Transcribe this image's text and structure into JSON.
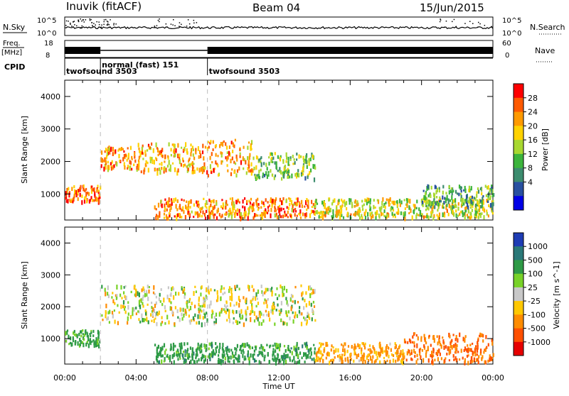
{
  "header": {
    "station": "Inuvik (fitACF)",
    "beam": "Beam 04",
    "date": "15/Jun/2015"
  },
  "aux_panels": {
    "nsky_label": "N.Sky",
    "nsky_ticks": [
      "10^5",
      "10^0"
    ],
    "nsearch_label": "N.Search",
    "nsearch_ticks": [
      "10^5",
      "10^0"
    ],
    "freq_label_1": "Freq.",
    "freq_label_2": "[MHz]",
    "freq_ticks": [
      "18",
      "8"
    ],
    "nave_label": "Nave",
    "nave_ticks": [
      "60",
      "0"
    ],
    "cpid_label": "CPID"
  },
  "cpid_segments": [
    {
      "start": 0.0,
      "end": 2.0,
      "name": "twofsound 3503"
    },
    {
      "start": 2.0,
      "end": 8.0,
      "name": "normal (fast) 151"
    },
    {
      "start": 8.0,
      "end": 24.0,
      "name": "twofsound 3503"
    }
  ],
  "power_scale": {
    "title": "Power [dB]",
    "ticks": [
      "28",
      "24",
      "20",
      "16",
      "12",
      "8",
      "4"
    ],
    "colors": [
      "#ff0000",
      "#ff5a00",
      "#ff9a00",
      "#ffd200",
      "#a8d830",
      "#3cb43c",
      "#3c8c6e",
      "#2850a0",
      "#0000e6"
    ]
  },
  "velocity_scale": {
    "title": "Velocity [m s^-1]",
    "ticks": [
      "1000",
      "500",
      "100",
      "25",
      "-25",
      "-100",
      "-500",
      "-1000"
    ],
    "colors": [
      "#1e3cb4",
      "#2a7878",
      "#2e9a46",
      "#78d228",
      "#c8c8c8",
      "#ffc800",
      "#ff8c00",
      "#ff5000",
      "#e60000"
    ]
  },
  "chart_data": [
    {
      "type": "heatmap",
      "panel": "power",
      "ylabel": "Slant Range [km]",
      "xlabel": "Time UT",
      "xlim": [
        0,
        24
      ],
      "ylim": [
        200,
        4500
      ],
      "yticks": [
        1000,
        2000,
        3000,
        4000
      ],
      "xticks": [
        "00:00",
        "04:00",
        "08:00",
        "12:00",
        "16:00",
        "20:00",
        "00:00"
      ],
      "colorbar": "Power [dB]",
      "regions": [
        {
          "t0": 0.0,
          "t1": 2.0,
          "r0": 800,
          "r1": 1300,
          "value": 26
        },
        {
          "t0": 2.0,
          "t1": 4.0,
          "r0": 1800,
          "r1": 2500,
          "value": 24
        },
        {
          "t0": 4.0,
          "t1": 8.0,
          "r0": 1700,
          "r1": 2600,
          "value": 22
        },
        {
          "t0": 8.0,
          "t1": 10.5,
          "r0": 1600,
          "r1": 2700,
          "value": 22
        },
        {
          "t0": 10.5,
          "t1": 14.0,
          "r0": 1500,
          "r1": 2300,
          "value": 14
        },
        {
          "t0": 5.0,
          "t1": 14.0,
          "r0": 300,
          "r1": 900,
          "value": 24
        },
        {
          "t0": 14.0,
          "t1": 24.0,
          "r0": 300,
          "r1": 900,
          "value": 18
        },
        {
          "t0": 20.0,
          "t1": 24.0,
          "r0": 600,
          "r1": 1300,
          "value": 12
        }
      ]
    },
    {
      "type": "heatmap",
      "panel": "velocity",
      "ylabel": "Slant Range [km]",
      "xlabel": "Time UT",
      "xlim": [
        0,
        24
      ],
      "ylim": [
        200,
        4500
      ],
      "yticks": [
        1000,
        2000,
        3000,
        4000
      ],
      "xticks": [
        "00:00",
        "04:00",
        "08:00",
        "12:00",
        "16:00",
        "20:00",
        "00:00"
      ],
      "colorbar": "Velocity [m s^-1]",
      "regions": [
        {
          "t0": 0.0,
          "t1": 2.0,
          "r0": 800,
          "r1": 1300,
          "value": 150
        },
        {
          "t0": 2.0,
          "t1": 14.0,
          "r0": 1500,
          "r1": 2700,
          "value": 0
        },
        {
          "t0": 5.0,
          "t1": 14.0,
          "r0": 300,
          "r1": 900,
          "value": 200
        },
        {
          "t0": 14.0,
          "t1": 19.0,
          "r0": 300,
          "r1": 900,
          "value": -150
        },
        {
          "t0": 19.0,
          "t1": 24.0,
          "r0": 300,
          "r1": 1200,
          "value": -300
        }
      ]
    }
  ]
}
